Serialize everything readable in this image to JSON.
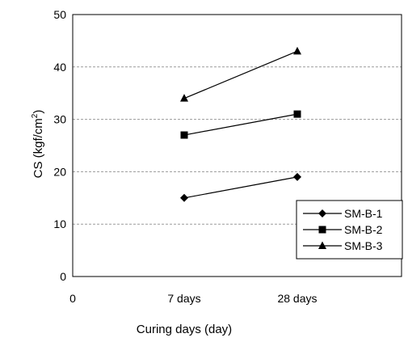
{
  "chart_data": {
    "type": "line",
    "title": "",
    "xlabel": "Curing days (day)",
    "ylabel": "CS (kgf/cm²)",
    "ylabel_main": "CS (kgf/cm",
    "ylabel_sup": "2",
    "ylabel_close": ")",
    "x_tick_labels": [
      "0",
      "7 days",
      "28 days"
    ],
    "categories": [
      "7 days",
      "28 days"
    ],
    "ylim": [
      0,
      50
    ],
    "yticks": [
      0,
      10,
      20,
      30,
      40,
      50
    ],
    "grid": true,
    "legend_position": "bottom-right",
    "series": [
      {
        "name": "SM-B-1",
        "marker": "diamond",
        "values": [
          15,
          19
        ]
      },
      {
        "name": "SM-B-2",
        "marker": "square",
        "values": [
          27,
          31
        ]
      },
      {
        "name": "SM-B-3",
        "marker": "triangle",
        "values": [
          34,
          43
        ]
      }
    ],
    "colors": {
      "line": "#000000",
      "grid": "#9a9a9a",
      "background": "#ffffff"
    }
  }
}
